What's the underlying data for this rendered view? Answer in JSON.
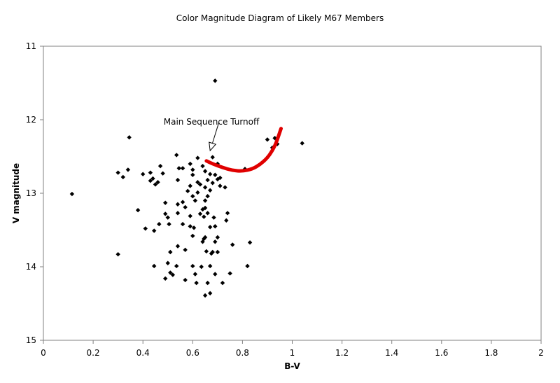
{
  "chart_data": {
    "type": "scatter",
    "title": "Color Magnitude Diagram of Likely M67 Members",
    "xlabel": "B-V",
    "ylabel": "V magnitude",
    "xlim": [
      0,
      2
    ],
    "ylim": [
      11,
      15
    ],
    "y_inverted": true,
    "x_ticks": [
      "0",
      "0.2",
      "0.4",
      "0.6",
      "0.8",
      "1",
      "1.2",
      "1.4",
      "1.6",
      "1.8",
      "2"
    ],
    "y_ticks": [
      "11",
      "12",
      "13",
      "14",
      "15"
    ],
    "grid": false,
    "marker_color": "#000000",
    "points": [
      [
        0.69,
        11.47
      ],
      [
        0.345,
        12.24
      ],
      [
        0.9,
        12.27
      ],
      [
        0.93,
        12.25
      ],
      [
        1.04,
        12.32
      ],
      [
        0.92,
        12.38
      ],
      [
        0.94,
        12.33
      ],
      [
        0.535,
        12.48
      ],
      [
        0.62,
        12.52
      ],
      [
        0.68,
        12.51
      ],
      [
        0.47,
        12.63
      ],
      [
        0.56,
        12.66
      ],
      [
        0.59,
        12.6
      ],
      [
        0.64,
        12.63
      ],
      [
        0.7,
        12.6
      ],
      [
        0.81,
        12.67
      ],
      [
        0.3,
        12.72
      ],
      [
        0.34,
        12.68
      ],
      [
        0.4,
        12.74
      ],
      [
        0.43,
        12.72
      ],
      [
        0.48,
        12.73
      ],
      [
        0.545,
        12.66
      ],
      [
        0.6,
        12.68
      ],
      [
        0.65,
        12.7
      ],
      [
        0.67,
        12.74
      ],
      [
        0.69,
        12.75
      ],
      [
        0.71,
        12.79
      ],
      [
        0.32,
        12.78
      ],
      [
        0.44,
        12.8
      ],
      [
        0.46,
        12.85
      ],
      [
        0.54,
        12.82
      ],
      [
        0.6,
        12.75
      ],
      [
        0.62,
        12.85
      ],
      [
        0.66,
        12.82
      ],
      [
        0.68,
        12.86
      ],
      [
        0.7,
        12.81
      ],
      [
        0.43,
        12.83
      ],
      [
        0.45,
        12.88
      ],
      [
        0.59,
        12.9
      ],
      [
        0.63,
        12.88
      ],
      [
        0.65,
        12.92
      ],
      [
        0.71,
        12.9
      ],
      [
        0.73,
        12.92
      ],
      [
        0.115,
        13.01
      ],
      [
        0.58,
        12.97
      ],
      [
        0.62,
        12.99
      ],
      [
        0.67,
        12.96
      ],
      [
        0.6,
        13.04
      ],
      [
        0.66,
        13.04
      ],
      [
        0.49,
        13.13
      ],
      [
        0.54,
        13.15
      ],
      [
        0.56,
        13.12
      ],
      [
        0.61,
        13.1
      ],
      [
        0.65,
        13.1
      ],
      [
        0.38,
        13.23
      ],
      [
        0.57,
        13.19
      ],
      [
        0.65,
        13.2
      ],
      [
        0.64,
        13.22
      ],
      [
        0.49,
        13.28
      ],
      [
        0.54,
        13.27
      ],
      [
        0.63,
        13.28
      ],
      [
        0.66,
        13.27
      ],
      [
        0.74,
        13.27
      ],
      [
        0.5,
        13.33
      ],
      [
        0.59,
        13.31
      ],
      [
        0.645,
        13.32
      ],
      [
        0.685,
        13.33
      ],
      [
        0.735,
        13.37
      ],
      [
        0.465,
        13.42
      ],
      [
        0.505,
        13.42
      ],
      [
        0.56,
        13.42
      ],
      [
        0.59,
        13.45
      ],
      [
        0.605,
        13.47
      ],
      [
        0.67,
        13.46
      ],
      [
        0.69,
        13.45
      ],
      [
        0.41,
        13.48
      ],
      [
        0.445,
        13.51
      ],
      [
        0.6,
        13.58
      ],
      [
        0.645,
        13.62
      ],
      [
        0.65,
        13.6
      ],
      [
        0.7,
        13.6
      ],
      [
        0.54,
        13.72
      ],
      [
        0.64,
        13.66
      ],
      [
        0.69,
        13.66
      ],
      [
        0.76,
        13.7
      ],
      [
        0.83,
        13.67
      ],
      [
        0.3,
        13.83
      ],
      [
        0.51,
        13.8
      ],
      [
        0.57,
        13.77
      ],
      [
        0.655,
        13.79
      ],
      [
        0.675,
        13.82
      ],
      [
        0.68,
        13.8
      ],
      [
        0.7,
        13.8
      ],
      [
        0.445,
        13.99
      ],
      [
        0.5,
        13.95
      ],
      [
        0.535,
        13.99
      ],
      [
        0.6,
        13.99
      ],
      [
        0.635,
        14.0
      ],
      [
        0.67,
        13.99
      ],
      [
        0.82,
        13.99
      ],
      [
        0.51,
        14.08
      ],
      [
        0.52,
        14.11
      ],
      [
        0.61,
        14.1
      ],
      [
        0.69,
        14.1
      ],
      [
        0.75,
        14.09
      ],
      [
        0.49,
        14.16
      ],
      [
        0.57,
        14.18
      ],
      [
        0.615,
        14.22
      ],
      [
        0.66,
        14.22
      ],
      [
        0.72,
        14.22
      ],
      [
        0.65,
        14.39
      ],
      [
        0.67,
        14.36
      ]
    ],
    "turnoff_curve": [
      [
        0.655,
        12.56
      ],
      [
        0.68,
        12.6
      ],
      [
        0.72,
        12.65
      ],
      [
        0.76,
        12.69
      ],
      [
        0.8,
        12.7
      ],
      [
        0.84,
        12.67
      ],
      [
        0.87,
        12.61
      ],
      [
        0.9,
        12.52
      ],
      [
        0.92,
        12.42
      ],
      [
        0.935,
        12.32
      ],
      [
        0.945,
        12.22
      ],
      [
        0.955,
        12.12
      ]
    ],
    "curve_color": "#e00000",
    "annotation": {
      "text": "Main Sequence Turnoff",
      "arrow_tail": [
        0.705,
        12.04
      ],
      "arrow_head": [
        0.67,
        12.42
      ]
    }
  }
}
